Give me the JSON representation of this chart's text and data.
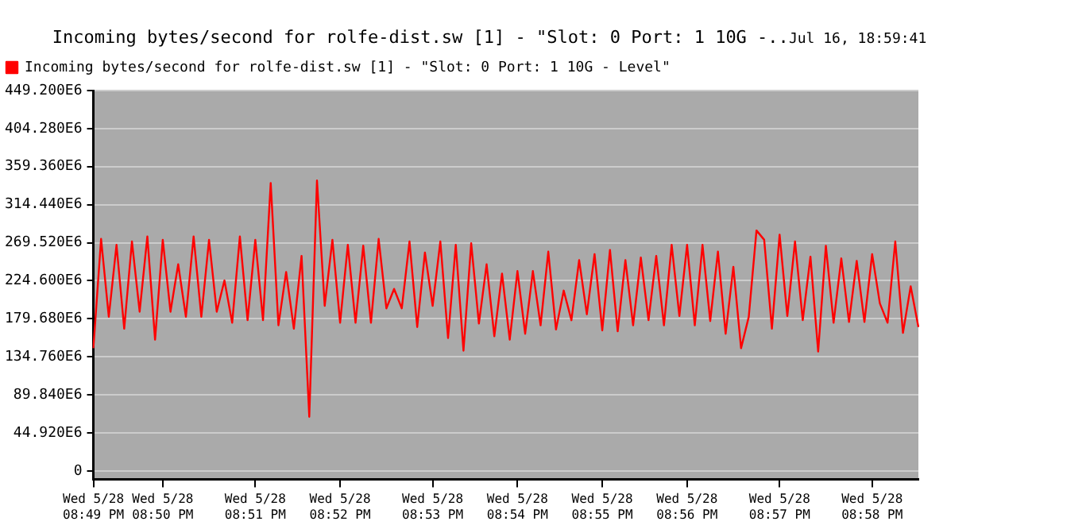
{
  "chart_data": {
    "type": "line",
    "title": "Incoming bytes/second for rolfe-dist.sw [1] - \"Slot: 0 Port: 1 10G -..",
    "subtitle": "Jul 16, 18:59:41",
    "categories": [
      "Wed 5/28 08:49 PM",
      null,
      null,
      null,
      null,
      null,
      null,
      null,
      null,
      "Wed 5/28 08:50 PM",
      null,
      null,
      null,
      null,
      null,
      null,
      null,
      null,
      null,
      null,
      null,
      "Wed 5/28 08:51 PM",
      null,
      null,
      null,
      null,
      null,
      null,
      null,
      null,
      null,
      null,
      "Wed 5/28 08:52 PM",
      null,
      null,
      null,
      null,
      null,
      null,
      null,
      null,
      null,
      null,
      null,
      "Wed 5/28 08:53 PM",
      null,
      null,
      null,
      null,
      null,
      null,
      null,
      null,
      null,
      null,
      "Wed 5/28 08:54 PM",
      null,
      null,
      null,
      null,
      null,
      null,
      null,
      null,
      null,
      null,
      "Wed 5/28 08:55 PM",
      null,
      null,
      null,
      null,
      null,
      null,
      null,
      null,
      null,
      null,
      "Wed 5/28 08:56 PM",
      null,
      null,
      null,
      null,
      null,
      null,
      null,
      null,
      null,
      null,
      null,
      "Wed 5/28 08:57 PM",
      null,
      null,
      null,
      null,
      null,
      null,
      null,
      null,
      null,
      null,
      null,
      "Wed 5/28 08:58 PM",
      null,
      null,
      null,
      null,
      null,
      null
    ],
    "series": [
      {
        "name": "Incoming bytes/second for rolfe-dist.sw [1] - \"Slot: 0 Port: 1 10G - Level\"",
        "color": "#ff0000",
        "values": [
          145000000,
          274000000,
          182000000,
          267000000,
          168000000,
          271000000,
          188000000,
          277000000,
          155000000,
          273000000,
          188000000,
          244000000,
          182000000,
          277000000,
          182000000,
          273000000,
          188000000,
          225000000,
          175000000,
          277000000,
          178000000,
          273000000,
          178000000,
          340000000,
          172000000,
          235000000,
          168000000,
          254000000,
          64000000,
          343000000,
          195000000,
          273000000,
          175000000,
          267000000,
          175000000,
          266000000,
          175000000,
          274000000,
          192000000,
          215000000,
          192000000,
          271000000,
          170000000,
          258000000,
          195000000,
          271000000,
          157000000,
          267000000,
          142000000,
          269000000,
          174000000,
          244000000,
          159000000,
          233000000,
          155000000,
          236000000,
          162000000,
          236000000,
          172000000,
          259000000,
          167000000,
          213000000,
          178000000,
          249000000,
          185000000,
          256000000,
          166000000,
          261000000,
          165000000,
          249000000,
          172000000,
          252000000,
          178000000,
          254000000,
          172000000,
          267000000,
          183000000,
          267000000,
          172000000,
          267000000,
          177000000,
          259000000,
          162000000,
          241000000,
          145000000,
          182000000,
          284000000,
          273000000,
          168000000,
          279000000,
          183000000,
          271000000,
          178000000,
          253000000,
          141000000,
          266000000,
          175000000,
          251000000,
          176000000,
          248000000,
          176000000,
          256000000,
          198000000,
          175000000,
          271000000,
          163000000,
          218000000,
          170000000
        ]
      }
    ],
    "ylim": [
      -10000000,
      449200000
    ],
    "yticks": [
      0,
      {
        "value": 44920000,
        "label": "44.920E6"
      },
      {
        "value": 89840000,
        "label": "89.840E6"
      },
      {
        "value": 134760000,
        "label": "134.760E6"
      },
      {
        "value": 179680000,
        "label": "179.680E6"
      },
      {
        "value": 224600000,
        "label": "224.600E6"
      },
      {
        "value": 269520000,
        "label": "269.520E6"
      },
      {
        "value": 314440000,
        "label": "314.440E6"
      },
      {
        "value": 359360000,
        "label": "359.360E6"
      },
      {
        "value": 404280000,
        "label": "404.280E6"
      },
      {
        "value": 449200000,
        "label": "449.200E6"
      }
    ],
    "grid": "y",
    "legend": "top left",
    "marker": "none",
    "line_style": "solid"
  }
}
